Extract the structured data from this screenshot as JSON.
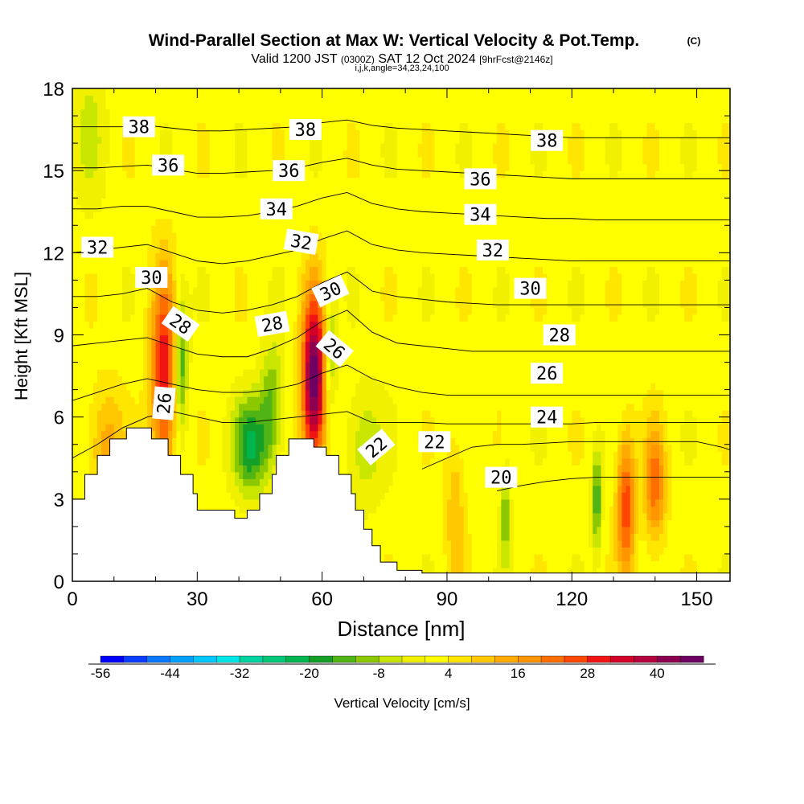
{
  "header": {
    "title": "Wind-Parallel Section at Max W: Vertical Velocity & Pot.Temp.",
    "title_mark": "(C)",
    "valid_prefix": "Valid 1200 JST",
    "valid_utc": "(0300Z)",
    "valid_date": "SAT 12 Oct 2024",
    "forecast_tag": "[9hrFcst@2146z]",
    "indices": "i,j,k,angle=34,23,24,100"
  },
  "chart_data": {
    "type": "heatmap",
    "title": "Wind-Parallel Section at Max W: Vertical Velocity & Pot.Temp.",
    "xlabel": "Distance [nm]",
    "ylabel": "Height [Kft MSL]",
    "xlim": [
      0,
      158
    ],
    "ylim": [
      0,
      18
    ],
    "xticks": [
      0,
      30,
      60,
      90,
      120,
      150
    ],
    "yticks": [
      0,
      3,
      6,
      9,
      12,
      15,
      18
    ],
    "grid": false,
    "colorbar": {
      "label": "Vertical Velocity [cm/s]",
      "tick_labels": [
        "-56",
        "-44",
        "-32",
        "-20",
        "-8",
        "4",
        "16",
        "28",
        "40"
      ],
      "tick_values": [
        -56,
        -44,
        -32,
        -20,
        -8,
        4,
        16,
        28,
        40
      ],
      "bins": [
        -56,
        -52,
        -48,
        -44,
        -40,
        -36,
        -32,
        -28,
        -24,
        -20,
        -16,
        -12,
        -8,
        -4,
        0,
        4,
        8,
        12,
        16,
        20,
        24,
        28,
        32,
        36,
        40,
        44,
        48
      ],
      "colors": [
        "#0000ff",
        "#0a3cff",
        "#0a78ff",
        "#00a0ff",
        "#00c8ff",
        "#00e6e6",
        "#00d2a0",
        "#00c878",
        "#00b450",
        "#14a028",
        "#50b414",
        "#8cc800",
        "#c8e600",
        "#f0f000",
        "#ffff00",
        "#ffe600",
        "#ffc800",
        "#ffaa00",
        "#ff9600",
        "#ff6e00",
        "#ff4600",
        "#f01414",
        "#d20028",
        "#b4003c",
        "#8c0050",
        "#6e0064"
      ]
    },
    "terrain_kft": [
      [
        0,
        3
      ],
      [
        3,
        3
      ],
      [
        3,
        3.9
      ],
      [
        6,
        3.9
      ],
      [
        6,
        4.6
      ],
      [
        9,
        4.6
      ],
      [
        9,
        5.2
      ],
      [
        13,
        5.2
      ],
      [
        13,
        5.6
      ],
      [
        19,
        5.6
      ],
      [
        19,
        5.2
      ],
      [
        23,
        5.2
      ],
      [
        23,
        4.6
      ],
      [
        26,
        4.6
      ],
      [
        26,
        3.9
      ],
      [
        29,
        3.9
      ],
      [
        29,
        3.2
      ],
      [
        30,
        3.2
      ],
      [
        30,
        2.6
      ],
      [
        39,
        2.6
      ],
      [
        39,
        2.3
      ],
      [
        42,
        2.3
      ],
      [
        42,
        2.6
      ],
      [
        45,
        2.6
      ],
      [
        45,
        3.2
      ],
      [
        48,
        3.2
      ],
      [
        48,
        3.9
      ],
      [
        49,
        3.9
      ],
      [
        49,
        4.6
      ],
      [
        52,
        4.6
      ],
      [
        52,
        5.2
      ],
      [
        58,
        5.2
      ],
      [
        58,
        4.9
      ],
      [
        61,
        4.9
      ],
      [
        61,
        4.6
      ],
      [
        64,
        4.6
      ],
      [
        64,
        3.9
      ],
      [
        67,
        3.9
      ],
      [
        67,
        3.2
      ],
      [
        68,
        3.2
      ],
      [
        68,
        2.6
      ],
      [
        70,
        2.6
      ],
      [
        70,
        1.9
      ],
      [
        72,
        1.9
      ],
      [
        72,
        1.3
      ],
      [
        74,
        1.3
      ],
      [
        74,
        0.7
      ],
      [
        78,
        0.7
      ],
      [
        78,
        0.4
      ],
      [
        84,
        0.4
      ],
      [
        84,
        0.3
      ],
      [
        158,
        0.3
      ]
    ],
    "updraft_cores": [
      {
        "x": 22,
        "z": 7.5,
        "w": 30,
        "sx": 2.2,
        "sz": 2.6
      },
      {
        "x": 58,
        "z": 7.3,
        "w": 47,
        "sx": 2.0,
        "sz": 2.2
      },
      {
        "x": 133,
        "z": 2.8,
        "w": 25,
        "sx": 1.6,
        "sz": 1.8
      },
      {
        "x": 140,
        "z": 3.5,
        "w": 20,
        "sx": 1.8,
        "sz": 1.5
      },
      {
        "x": 8,
        "z": 5.0,
        "w": 12,
        "sx": 3.0,
        "sz": 1.5
      },
      {
        "x": 92,
        "z": 2.5,
        "w": 10,
        "sx": 1.6,
        "sz": 2.0
      }
    ],
    "downdraft_cores": [
      {
        "x": 26,
        "z": 8.0,
        "w": -20,
        "sx": 1.2,
        "sz": 1.8
      },
      {
        "x": 43,
        "z": 5.0,
        "w": -22,
        "sx": 3.0,
        "sz": 1.2
      },
      {
        "x": 48,
        "z": 6.5,
        "w": -14,
        "sx": 2.0,
        "sz": 1.5
      },
      {
        "x": 62,
        "z": 8.5,
        "w": -14,
        "sx": 1.0,
        "sz": 1.5
      },
      {
        "x": 70,
        "z": 5.0,
        "w": -10,
        "sx": 3.0,
        "sz": 1.5
      },
      {
        "x": 104,
        "z": 2.5,
        "w": -14,
        "sx": 0.8,
        "sz": 1.3
      },
      {
        "x": 126,
        "z": 3.0,
        "w": -18,
        "sx": 0.8,
        "sz": 1.3
      },
      {
        "x": 4,
        "z": 16.5,
        "w": -6,
        "sx": 3.0,
        "sz": 2.0
      }
    ],
    "isentropes": [
      {
        "theta": 20,
        "z": [
          null,
          null,
          null,
          null,
          null,
          null,
          null,
          null,
          null,
          null,
          null,
          null,
          null,
          null,
          null,
          null,
          null,
          3.3,
          3.5,
          3.65,
          3.75,
          3.8,
          3.8,
          3.8,
          3.8,
          3.8,
          3.8,
          3.8
        ]
      },
      {
        "theta": 22,
        "z": [
          null,
          null,
          null,
          null,
          null,
          null,
          null,
          null,
          null,
          null,
          null,
          null,
          null,
          null,
          4.1,
          4.5,
          4.9,
          5.0,
          5.0,
          5.05,
          5.1,
          5.1,
          5.1,
          5.1,
          5.1,
          5.1,
          4.9,
          4.6
        ]
      },
      {
        "theta": 24,
        "z": [
          4.5,
          5.0,
          5.6,
          6.0,
          6.2,
          6.0,
          5.8,
          5.8,
          5.9,
          6.0,
          6.1,
          6.2,
          5.8,
          5.8,
          5.8,
          5.75,
          5.75,
          5.75,
          5.75,
          5.75,
          5.75,
          5.8,
          5.8,
          5.8,
          5.8,
          5.8,
          5.8,
          5.8
        ]
      },
      {
        "theta": 26,
        "z": [
          6.6,
          6.9,
          7.2,
          7.4,
          7.2,
          7.0,
          6.9,
          6.9,
          7.0,
          7.2,
          7.6,
          7.9,
          7.4,
          7.1,
          6.9,
          6.8,
          6.8,
          6.8,
          6.8,
          6.8,
          6.8,
          6.8,
          6.8,
          6.8,
          6.8,
          6.8,
          6.8,
          6.8
        ]
      },
      {
        "theta": 28,
        "z": [
          8.6,
          8.7,
          8.8,
          8.9,
          8.6,
          8.3,
          8.2,
          8.2,
          8.5,
          8.9,
          9.5,
          9.9,
          9.1,
          8.7,
          8.6,
          8.5,
          8.4,
          8.4,
          8.4,
          8.4,
          8.4,
          8.4,
          8.4,
          8.4,
          8.4,
          8.4,
          8.4,
          8.4
        ]
      },
      {
        "theta": 30,
        "z": [
          10.4,
          10.4,
          10.5,
          10.7,
          10.2,
          9.9,
          9.8,
          9.9,
          10.1,
          10.4,
          10.9,
          11.3,
          10.6,
          10.4,
          10.3,
          10.2,
          10.15,
          10.1,
          10.1,
          10.1,
          10.1,
          10.1,
          10.1,
          10.1,
          10.1,
          10.1,
          10.1,
          10.1
        ]
      },
      {
        "theta": 32,
        "z": [
          12.0,
          12.1,
          12.2,
          12.3,
          12.0,
          11.7,
          11.6,
          11.7,
          11.9,
          12.1,
          12.5,
          12.8,
          12.3,
          12.1,
          12.0,
          11.95,
          11.9,
          11.85,
          11.8,
          11.75,
          11.7,
          11.7,
          11.7,
          11.7,
          11.7,
          11.7,
          11.7,
          11.7
        ]
      },
      {
        "theta": 34,
        "z": [
          13.6,
          13.6,
          13.7,
          13.7,
          13.5,
          13.3,
          13.3,
          13.35,
          13.5,
          13.7,
          14.0,
          14.2,
          13.8,
          13.6,
          13.5,
          13.45,
          13.4,
          13.35,
          13.3,
          13.25,
          13.25,
          13.2,
          13.2,
          13.2,
          13.2,
          13.2,
          13.2,
          13.2
        ]
      },
      {
        "theta": 36,
        "z": [
          15.1,
          15.1,
          15.15,
          15.2,
          15.05,
          14.9,
          14.9,
          14.95,
          15.0,
          15.1,
          15.3,
          15.45,
          15.2,
          15.05,
          15.0,
          14.95,
          14.9,
          14.85,
          14.8,
          14.75,
          14.7,
          14.7,
          14.7,
          14.7,
          14.7,
          14.7,
          14.7,
          14.7
        ]
      },
      {
        "theta": 38,
        "z": [
          16.6,
          16.6,
          16.6,
          16.65,
          16.55,
          16.45,
          16.45,
          16.5,
          16.55,
          16.6,
          16.75,
          16.85,
          16.65,
          16.55,
          16.5,
          16.45,
          16.4,
          16.35,
          16.3,
          16.25,
          16.2,
          16.2,
          16.2,
          16.2,
          16.2,
          16.2,
          16.2,
          16.2
        ]
      }
    ],
    "isentrope_labels": [
      {
        "text": "38",
        "x": 16,
        "z": 16.6,
        "angle": 0
      },
      {
        "text": "38",
        "x": 56,
        "z": 16.5,
        "angle": 0
      },
      {
        "text": "38",
        "x": 114,
        "z": 16.1,
        "angle": 0
      },
      {
        "text": "36",
        "x": 23,
        "z": 15.2,
        "angle": 0
      },
      {
        "text": "36",
        "x": 52,
        "z": 15.0,
        "angle": 0
      },
      {
        "text": "36",
        "x": 98,
        "z": 14.7,
        "angle": 0
      },
      {
        "text": "34",
        "x": 49,
        "z": 13.6,
        "angle": 0
      },
      {
        "text": "34",
        "x": 98,
        "z": 13.4,
        "angle": 0
      },
      {
        "text": "32",
        "x": 6,
        "z": 12.2,
        "angle": 0
      },
      {
        "text": "32",
        "x": 55,
        "z": 12.4,
        "angle": 10
      },
      {
        "text": "32",
        "x": 101,
        "z": 12.1,
        "angle": 0
      },
      {
        "text": "30",
        "x": 19,
        "z": 11.1,
        "angle": 0
      },
      {
        "text": "30",
        "x": 62,
        "z": 10.6,
        "angle": -25
      },
      {
        "text": "30",
        "x": 110,
        "z": 10.7,
        "angle": 0
      },
      {
        "text": "28",
        "x": 26,
        "z": 9.4,
        "angle": 35
      },
      {
        "text": "28",
        "x": 48,
        "z": 9.4,
        "angle": -10
      },
      {
        "text": "28",
        "x": 117,
        "z": 9.0,
        "angle": 0
      },
      {
        "text": "26",
        "x": 22,
        "z": 6.5,
        "angle": -85
      },
      {
        "text": "26",
        "x": 63,
        "z": 8.5,
        "angle": 40
      },
      {
        "text": "26",
        "x": 114,
        "z": 7.6,
        "angle": 0
      },
      {
        "text": "24",
        "x": 114,
        "z": 6.0,
        "angle": 0
      },
      {
        "text": "22",
        "x": 73,
        "z": 4.9,
        "angle": -40
      },
      {
        "text": "22",
        "x": 87,
        "z": 5.1,
        "angle": 0
      },
      {
        "text": "20",
        "x": 103,
        "z": 3.8,
        "angle": 0
      }
    ]
  },
  "colors": {
    "background": "#ffffff",
    "terrain": "#ffffff",
    "isentrope_line": "#000000",
    "axis": "#000000"
  }
}
